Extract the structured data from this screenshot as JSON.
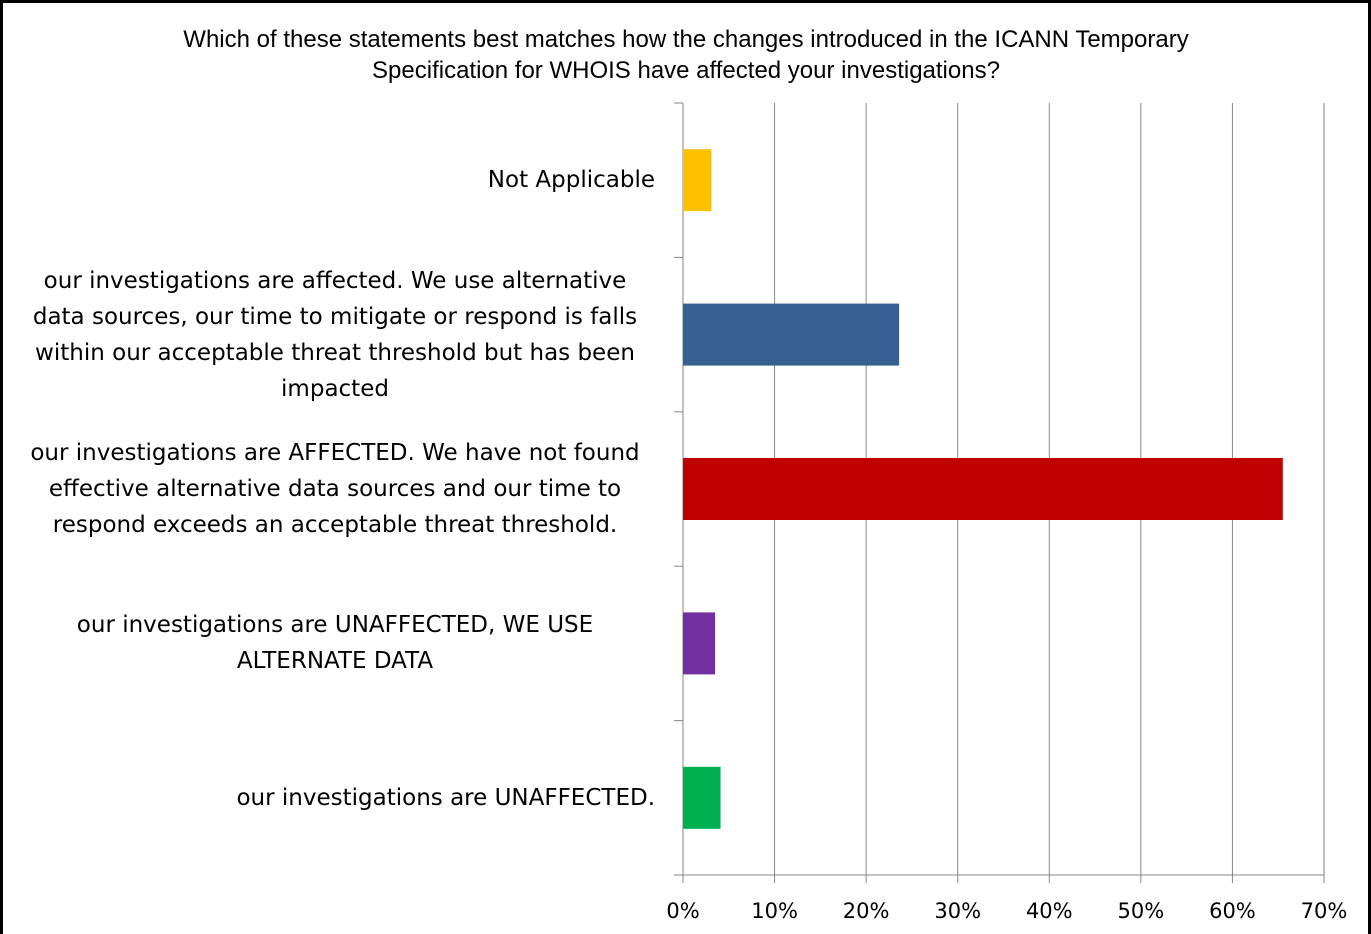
{
  "chart_data": {
    "type": "barh",
    "title": "Which of these statements best matches how the changes introduced in the ICANN Temporary Specification for WHOIS have affected your investigations?",
    "categories": [
      "Not Applicable",
      "our investigations are affected. We use alternative data sources, our time to mitigate or respond is falls within our acceptable threat threshold but has been impacted",
      "our investigations are AFFECTED. We have not found effective alternative data sources and our time to respond exceeds an acceptable threat threshold.",
      "our investigations are UNAFFECTED, WE USE ALTERNATE DATA",
      "our investigations are UNAFFECTED."
    ],
    "values": [
      3.1,
      23.6,
      65.5,
      3.5,
      4.1
    ],
    "colors": [
      "#ffc000",
      "#376092",
      "#c00000",
      "#7030a0",
      "#00b050"
    ],
    "xlim": [
      0,
      70
    ],
    "xticks": [
      {
        "value": 0,
        "label": "0%"
      },
      {
        "value": 10,
        "label": "10%"
      },
      {
        "value": 20,
        "label": "20%"
      },
      {
        "value": 30,
        "label": "30%"
      },
      {
        "value": 40,
        "label": "40%"
      },
      {
        "value": 50,
        "label": "50%"
      },
      {
        "value": 60,
        "label": "60%"
      },
      {
        "value": 70,
        "label": "70%"
      }
    ],
    "grid": true
  }
}
